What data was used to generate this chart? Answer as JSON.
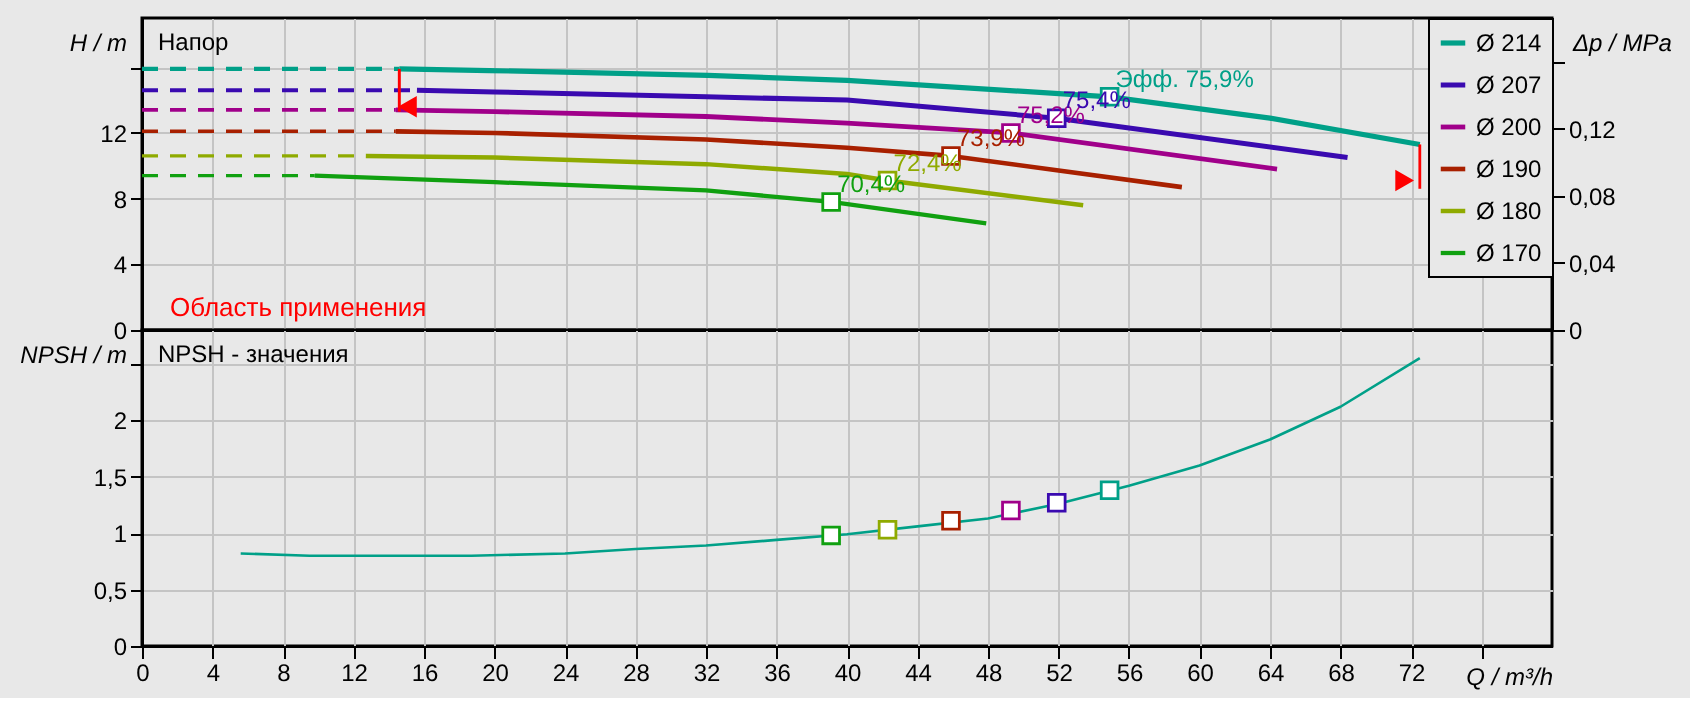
{
  "chart_data": [
    {
      "type": "line",
      "ylabel": "H / m",
      "y2label": "Δp / MPa",
      "xlim": [
        0,
        80
      ],
      "xticks": [
        0,
        4,
        8,
        12,
        16,
        20,
        24,
        28,
        32,
        36,
        40,
        44,
        48,
        52,
        56,
        60,
        64,
        68,
        72,
        {
          "value": 76,
          "label": null
        }
      ],
      "ylim": [
        0,
        19
      ],
      "yticks": [
        0,
        4,
        8,
        12,
        {
          "value": 16,
          "label": null
        }
      ],
      "y2lim": [
        0,
        0.186
      ],
      "y2ticks": [
        0,
        {
          "value": 0.04,
          "label": "0,04"
        },
        {
          "value": 0.08,
          "label": "0,08"
        },
        {
          "value": 0.12,
          "label": "0,12"
        },
        {
          "value": 0.16,
          "label": null
        }
      ],
      "grid": true,
      "legend": "top right",
      "tick_labels": "y",
      "series": [
        {
          "name": "Ø 214",
          "color": "#00a088",
          "x": [
            14.6,
            19.7,
            32.1,
            40,
            54.9,
            64,
            72.5
          ],
          "values": [
            15.9,
            15.8,
            15.5,
            15.2,
            14.2,
            12.9,
            11.3
          ]
        },
        {
          "name": "Ø 207",
          "color": "#3a0ab0",
          "x": [
            15.6,
            20,
            32,
            40,
            51.9,
            68.4
          ],
          "values": [
            14.6,
            14.5,
            14.2,
            14.0,
            12.9,
            10.5
          ]
        },
        {
          "name": "Ø 200",
          "color": "#a0008a",
          "x": [
            14.4,
            20,
            32,
            40,
            49.3,
            64.4
          ],
          "values": [
            13.4,
            13.3,
            13.0,
            12.6,
            12.0,
            9.8
          ]
        },
        {
          "name": "Ø 190",
          "color": "#a82000",
          "x": [
            14.4,
            20,
            32,
            40,
            45.9,
            59
          ],
          "values": [
            12.1,
            12.0,
            11.6,
            11.1,
            10.6,
            8.7
          ]
        },
        {
          "name": "Ø 180",
          "color": "#8faa00",
          "x": [
            12.7,
            20,
            32,
            40,
            42.3,
            53.4
          ],
          "values": [
            10.6,
            10.5,
            10.1,
            9.5,
            9.1,
            7.6
          ]
        },
        {
          "name": "Ø 170",
          "color": "#10a010",
          "x": [
            9.8,
            20,
            32,
            39.1,
            47.9
          ],
          "values": [
            9.4,
            9.0,
            8.5,
            7.8,
            6.5
          ]
        },
        {
          "color": "#00a088",
          "line_style": "dashed",
          "x": [
            0,
            14.6
          ],
          "values": [
            15.9,
            15.9
          ]
        },
        {
          "color": "#3a0ab0",
          "line_style": "dashed",
          "x": [
            0,
            15.6
          ],
          "values": [
            14.6,
            14.6
          ]
        },
        {
          "color": "#a0008a",
          "line_style": "dashed",
          "x": [
            0,
            14.4
          ],
          "values": [
            13.4,
            13.4
          ]
        },
        {
          "color": "#a82000",
          "line_style": "dashed",
          "x": [
            0,
            14.4
          ],
          "values": [
            12.1,
            12.1
          ]
        },
        {
          "color": "#8faa00",
          "line_style": "dashed",
          "x": [
            0,
            12.7
          ],
          "values": [
            10.6,
            10.6
          ]
        },
        {
          "color": "#10a010",
          "line_style": "dashed",
          "x": [
            0,
            9.8
          ],
          "values": [
            9.4,
            9.4
          ]
        },
        {
          "color": "#ff0000",
          "x": [
            14.6,
            14.6
          ],
          "values": [
            13.3,
            15.9
          ]
        },
        {
          "color": "#ff0000",
          "x": [
            72.5,
            72.5
          ],
          "values": [
            8.6,
            11.3
          ]
        },
        {
          "type": "scatter",
          "marker": "triangle",
          "color": "#ff0000",
          "x": [
            15.1,
            71.6
          ],
          "values": [
            13.6,
            9.1
          ]
        },
        {
          "type": "scatter",
          "marker": "square",
          "x": [
            39.1,
            42.3,
            45.9,
            49.3,
            51.9,
            54.9
          ],
          "values": [
            7.8,
            9.1,
            10.6,
            12.0,
            12.9,
            14.2
          ],
          "colors": [
            "#10a010",
            "#8faa00",
            "#a82000",
            "#a0008a",
            "#3a0ab0",
            "#00a088"
          ]
        }
      ],
      "annotations": [
        "Напор",
        "Область применения",
        {
          "text": "70,4%",
          "x": 39.1,
          "y": 7.8
        },
        {
          "text": "72,4%",
          "x": 42.3,
          "y": 9.1
        },
        {
          "text": "73,9%",
          "x": 45.9,
          "y": 10.6
        },
        {
          "text": "75,2%",
          "x": 49.3,
          "y": 12.0
        },
        {
          "text": "75,4%",
          "x": 51.9,
          "y": 12.9
        },
        {
          "text": "Эфф.  75,9%",
          "x": 54.9,
          "y": 14.2
        }
      ]
    },
    {
      "type": "line",
      "xlabel": "Q / m³/h",
      "ylabel": "NPSH / m",
      "xlim": [
        0,
        80
      ],
      "xticks": [
        0,
        4,
        8,
        12,
        16,
        20,
        24,
        28,
        32,
        36,
        40,
        44,
        48,
        52,
        56,
        60,
        64,
        68,
        72,
        {
          "value": 76,
          "label": null
        }
      ],
      "ylim": [
        0,
        2.8
      ],
      "yticks": [
        0,
        {
          "value": 0.5,
          "label": "0,5"
        },
        1,
        {
          "value": 1.5,
          "label": "1,5"
        },
        2,
        {
          "value": 2.5,
          "label": null
        }
      ],
      "grid": true,
      "series": [
        {
          "color": "#00a088",
          "x": [
            5.6,
            9.5,
            18.7,
            24,
            28,
            32,
            36,
            40,
            44,
            48,
            52,
            56,
            60,
            64,
            68,
            72.5
          ],
          "values": [
            0.82,
            0.8,
            0.8,
            0.82,
            0.86,
            0.89,
            0.94,
            0.99,
            1.06,
            1.13,
            1.26,
            1.42,
            1.6,
            1.83,
            2.12,
            2.55
          ]
        },
        {
          "type": "scatter",
          "marker": "square",
          "x": [
            39.1,
            42.3,
            45.9,
            49.3,
            51.9,
            54.9
          ],
          "values": [
            0.98,
            1.03,
            1.11,
            1.2,
            1.27,
            1.38
          ],
          "colors": [
            "#10a010",
            "#8faa00",
            "#a82000",
            "#a0008a",
            "#3a0ab0",
            "#00a088"
          ]
        }
      ],
      "annotations": [
        "NPSH - значения"
      ]
    }
  ]
}
